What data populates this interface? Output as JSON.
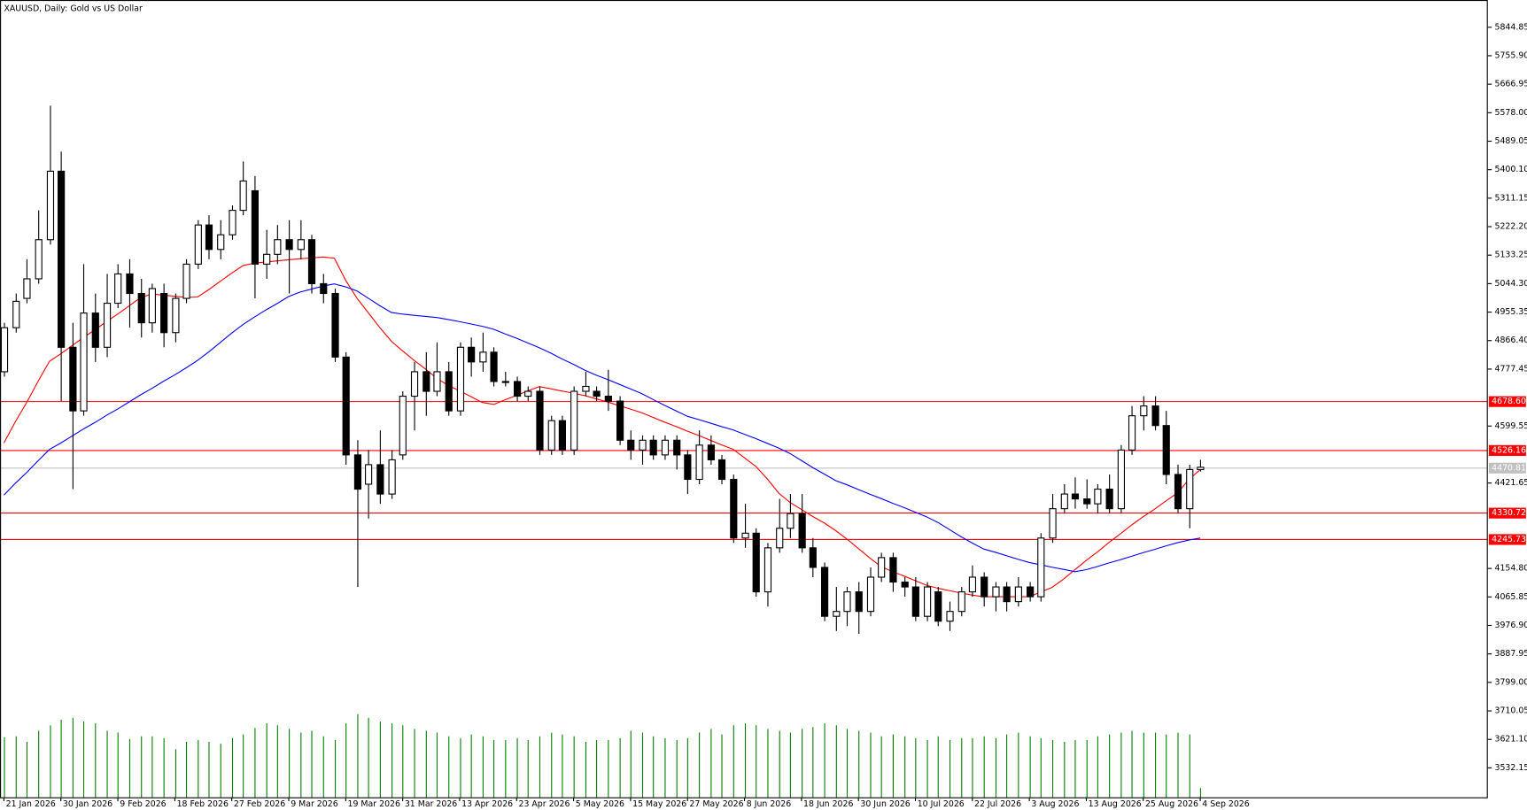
{
  "chart_data": {
    "type": "candlestick",
    "title": "XAUUSD, Daily:  Gold vs US Dollar",
    "ylim": [
      3440.2,
      5930.0
    ],
    "xlim": [
      -0.34,
      130.24
    ],
    "yticks": [
      {
        "value": 5844.85,
        "label": "5844.85"
      },
      {
        "value": 5755.9,
        "label": "5755.90"
      },
      {
        "value": 5666.95,
        "label": "5666.95"
      },
      {
        "value": 5578.0,
        "label": "5578.00"
      },
      {
        "value": 5489.05,
        "label": "5489.05"
      },
      {
        "value": 5400.1,
        "label": "5400.10"
      },
      {
        "value": 5311.15,
        "label": "5311.15"
      },
      {
        "value": 5222.2,
        "label": "5222.20"
      },
      {
        "value": 5133.25,
        "label": "5133.25"
      },
      {
        "value": 5044.3,
        "label": "5044.30"
      },
      {
        "value": 4955.35,
        "label": "4955.35"
      },
      {
        "value": 4866.4,
        "label": "4866.40"
      },
      {
        "value": 4777.45,
        "label": "4777.45"
      },
      {
        "value": 4599.55,
        "label": "4599.55"
      },
      {
        "value": 4421.65,
        "label": "4421.65"
      },
      {
        "value": 4154.8,
        "label": "4154.80"
      },
      {
        "value": 4065.85,
        "label": "4065.85"
      },
      {
        "value": 3976.9,
        "label": "3976.90"
      },
      {
        "value": 3887.95,
        "label": "3887.95"
      },
      {
        "value": 3799.0,
        "label": "3799.00"
      },
      {
        "value": 3710.05,
        "label": "3710.05"
      },
      {
        "value": 3621.1,
        "label": "3621.10"
      },
      {
        "value": 3532.15,
        "label": "3532.15"
      }
    ],
    "xticks": [
      {
        "value": 0,
        "label": "21 Jan 2026"
      },
      {
        "value": 5,
        "label": "30 Jan 2026"
      },
      {
        "value": 10,
        "label": "9 Feb 2026"
      },
      {
        "value": 15,
        "label": "18 Feb 2026"
      },
      {
        "value": 20,
        "label": "27 Feb 2026"
      },
      {
        "value": 25,
        "label": "9 Mar 2026"
      },
      {
        "value": 30,
        "label": "19 Mar 2026"
      },
      {
        "value": 35,
        "label": "31 Mar 2026"
      },
      {
        "value": 40,
        "label": "13 Apr 2026"
      },
      {
        "value": 45,
        "label": "23 Apr 2026"
      },
      {
        "value": 50,
        "label": "5 May 2026"
      },
      {
        "value": 55,
        "label": "15 May 2026"
      },
      {
        "value": 60,
        "label": "27 May 2026"
      },
      {
        "value": 65,
        "label": "8 Jun 2026"
      },
      {
        "value": 70,
        "label": "18 Jun 2026"
      },
      {
        "value": 75,
        "label": "30 Jun 2026"
      },
      {
        "value": 80,
        "label": "10 Jul 2026"
      },
      {
        "value": 85,
        "label": "22 Jul 2026"
      },
      {
        "value": 90,
        "label": "3 Aug 2026"
      },
      {
        "value": 95,
        "label": "13 Aug 2026"
      },
      {
        "value": 100,
        "label": "25 Aug 2026"
      },
      {
        "value": 105,
        "label": "4 Sep 2026"
      }
    ],
    "levels": [
      {
        "value": 4678.6,
        "label": "4678.60",
        "color": "#ff0000"
      },
      {
        "value": 4526.16,
        "label": "4526.16",
        "color": "#ff0000"
      },
      {
        "value": 4330.72,
        "label": "4330.72",
        "color": "#ff0000"
      },
      {
        "value": 4245.73,
        "label": "4245.73",
        "color": "#ff0000"
      }
    ],
    "bid": {
      "value": 4470.81,
      "label": "4470.81",
      "color": "#c0c0c0"
    },
    "up_color": "#ffffff",
    "down_color": "#000000",
    "volume_color": "#008000",
    "ma_fast_color": "#ff0000",
    "ma_slow_color": "#0000ff",
    "ohlc": [
      [
        4769.1,
        4921.9,
        4753.8,
        4906.6
      ],
      [
        4906.6,
        5013.5,
        4891.3,
        4989.1
      ],
      [
        4998.2,
        5120.4,
        4983.0,
        5059.3
      ],
      [
        5059.3,
        5273.2,
        5044.1,
        5181.5
      ],
      [
        5181.5,
        5600.1,
        5166.3,
        5395.4
      ],
      [
        5395.4,
        5456.5,
        4677.4,
        4845.5
      ],
      [
        4845.5,
        4921.9,
        4402.5,
        4646.9
      ],
      [
        4646.9,
        5105.2,
        4631.6,
        4952.4
      ],
      [
        4952.4,
        5013.5,
        4799.7,
        4845.5
      ],
      [
        4845.5,
        5074.6,
        4814.9,
        4983.0
      ],
      [
        4983.0,
        5105.2,
        4967.7,
        5074.6
      ],
      [
        5074.6,
        5120.4,
        4906.6,
        5013.5
      ],
      [
        5013.5,
        5059.3,
        4876.0,
        4921.9
      ],
      [
        4921.9,
        5044.1,
        4891.3,
        5028.8
      ],
      [
        5013.5,
        5044.1,
        4845.5,
        4891.3
      ],
      [
        4891.3,
        5013.5,
        4860.8,
        4998.2
      ],
      [
        4998.2,
        5120.4,
        4983.0,
        5105.2
      ],
      [
        5105.2,
        5242.6,
        5089.9,
        5227.4
      ],
      [
        5227.4,
        5257.9,
        5120.4,
        5151.0
      ],
      [
        5151.0,
        5242.6,
        5120.4,
        5196.8
      ],
      [
        5196.8,
        5288.5,
        5181.5,
        5273.2
      ],
      [
        5273.2,
        5425.9,
        5257.9,
        5364.8
      ],
      [
        5334.3,
        5380.1,
        4998.2,
        5105.2
      ],
      [
        5105.2,
        5212.1,
        5059.3,
        5135.7
      ],
      [
        5135.7,
        5227.4,
        5105.2,
        5181.5
      ],
      [
        5181.5,
        5242.6,
        5013.5,
        5151.0
      ],
      [
        5151.0,
        5242.6,
        5120.4,
        5181.5
      ],
      [
        5181.5,
        5196.8,
        5013.5,
        5044.1
      ],
      [
        5044.1,
        5074.6,
        4983.0,
        5013.5
      ],
      [
        5013.5,
        5028.8,
        4799.7,
        4814.9
      ],
      [
        4814.9,
        4830.2,
        4478.9,
        4509.4
      ],
      [
        4509.4,
        4555.3,
        4097.0,
        4402.5
      ],
      [
        4417.8,
        4524.7,
        4310.8,
        4478.9
      ],
      [
        4478.9,
        4585.8,
        4356.7,
        4387.2
      ],
      [
        4387.2,
        4524.7,
        4371.9,
        4494.1
      ],
      [
        4509.4,
        4708.0,
        4494.1,
        4692.7
      ],
      [
        4692.7,
        4799.7,
        4585.8,
        4769.1
      ],
      [
        4769.1,
        4830.2,
        4631.6,
        4708.0
      ],
      [
        4708.0,
        4860.8,
        4692.7,
        4769.1
      ],
      [
        4769.1,
        4799.7,
        4631.6,
        4646.9
      ],
      [
        4646.9,
        4860.8,
        4631.6,
        4845.5
      ],
      [
        4845.5,
        4876.0,
        4753.8,
        4799.7
      ],
      [
        4799.7,
        4891.3,
        4769.1,
        4830.2
      ],
      [
        4830.2,
        4845.5,
        4723.3,
        4738.6
      ],
      [
        4738.6,
        4769.1,
        4723.3,
        4738.6
      ],
      [
        4738.6,
        4753.8,
        4677.4,
        4692.7
      ],
      [
        4692.7,
        4723.3,
        4677.4,
        4708.0
      ],
      [
        4708.0,
        4723.3,
        4509.4,
        4524.7
      ],
      [
        4524.7,
        4631.6,
        4509.4,
        4616.4
      ],
      [
        4616.4,
        4631.6,
        4509.4,
        4524.7
      ],
      [
        4524.7,
        4723.3,
        4509.4,
        4708.0
      ],
      [
        4708.0,
        4769.1,
        4692.7,
        4723.3
      ],
      [
        4708.0,
        4723.3,
        4677.4,
        4692.7
      ],
      [
        4692.7,
        4775.2,
        4646.9,
        4677.4
      ],
      [
        4677.4,
        4692.7,
        4540.0,
        4555.3
      ],
      [
        4555.3,
        4585.8,
        4494.1,
        4524.7
      ],
      [
        4524.7,
        4570.5,
        4478.9,
        4555.3
      ],
      [
        4555.3,
        4570.5,
        4494.1,
        4509.4
      ],
      [
        4509.4,
        4570.5,
        4494.1,
        4555.3
      ],
      [
        4555.3,
        4570.5,
        4463.6,
        4509.4
      ],
      [
        4509.4,
        4524.7,
        4387.2,
        4433.0
      ],
      [
        4433.0,
        4585.8,
        4417.8,
        4540.0
      ],
      [
        4540.0,
        4570.5,
        4478.9,
        4494.1
      ],
      [
        4494.1,
        4509.4,
        4417.8,
        4433.0
      ],
      [
        4433.0,
        4448.3,
        4234.5,
        4249.8
      ],
      [
        4249.8,
        4356.7,
        4219.2,
        4265.0
      ],
      [
        4265.0,
        4280.3,
        4066.5,
        4081.7
      ],
      [
        4081.7,
        4234.5,
        4035.9,
        4219.2
      ],
      [
        4219.2,
        4371.9,
        4203.9,
        4280.3
      ],
      [
        4280.3,
        4387.2,
        4249.8,
        4326.1
      ],
      [
        4326.1,
        4387.2,
        4203.9,
        4219.2
      ],
      [
        4219.2,
        4249.8,
        4127.6,
        4158.1
      ],
      [
        4158.1,
        4173.4,
        3990.1,
        4005.4
      ],
      [
        4005.4,
        4097.0,
        3959.5,
        4020.6
      ],
      [
        4020.6,
        4097.0,
        3974.8,
        4081.7
      ],
      [
        4081.7,
        4112.3,
        3950.4,
        4020.6
      ],
      [
        4020.6,
        4158.1,
        4005.4,
        4127.6
      ],
      [
        4127.6,
        4203.9,
        4112.3,
        4188.6
      ],
      [
        4188.6,
        4203.9,
        4081.7,
        4112.3
      ],
      [
        4112.3,
        4127.6,
        4066.5,
        4097.0
      ],
      [
        4097.0,
        4127.6,
        3990.1,
        4005.4
      ],
      [
        4005.4,
        4112.3,
        3990.1,
        4097.0
      ],
      [
        4081.7,
        4097.0,
        3974.8,
        3990.1
      ],
      [
        3990.1,
        4051.2,
        3959.5,
        4020.6
      ],
      [
        4020.6,
        4097.0,
        4005.4,
        4081.7
      ],
      [
        4081.7,
        4164.2,
        4066.5,
        4127.6
      ],
      [
        4127.6,
        4142.8,
        4035.9,
        4066.5
      ],
      [
        4066.5,
        4112.3,
        4020.6,
        4097.0
      ],
      [
        4097.0,
        4112.3,
        4020.6,
        4051.2
      ],
      [
        4051.2,
        4127.6,
        4035.9,
        4097.0
      ],
      [
        4097.0,
        4112.3,
        4051.2,
        4066.5
      ],
      [
        4066.5,
        4265.0,
        4051.2,
        4249.8
      ],
      [
        4249.8,
        4387.2,
        4234.5,
        4341.4
      ],
      [
        4341.4,
        4417.8,
        4326.1,
        4387.2
      ],
      [
        4387.2,
        4439.2,
        4341.4,
        4371.9
      ],
      [
        4371.9,
        4433.0,
        4341.4,
        4356.7
      ],
      [
        4356.7,
        4417.8,
        4326.1,
        4402.5
      ],
      [
        4402.5,
        4448.3,
        4326.1,
        4341.4
      ],
      [
        4341.4,
        4540.0,
        4326.1,
        4524.7
      ],
      [
        4524.7,
        4662.2,
        4509.4,
        4631.6
      ],
      [
        4631.6,
        4692.7,
        4585.8,
        4662.2
      ],
      [
        4662.2,
        4692.7,
        4585.8,
        4601.1
      ],
      [
        4601.1,
        4646.9,
        4417.8,
        4448.3
      ],
      [
        4448.3,
        4478.9,
        4326.1,
        4341.4
      ],
      [
        4341.4,
        4478.9,
        4280.3,
        4463.6
      ],
      [
        4463.6,
        4494.1,
        4457.5,
        4470.81
      ]
    ],
    "volume": [
      65,
      66,
      60,
      72,
      78,
      84,
      86,
      82,
      80,
      72,
      70,
      63,
      66,
      66,
      64,
      52,
      60,
      62,
      60,
      58,
      64,
      68,
      75,
      80,
      78,
      74,
      70,
      72,
      66,
      62,
      80,
      90,
      86,
      82,
      80,
      78,
      74,
      72,
      70,
      66,
      64,
      68,
      66,
      62,
      62,
      64,
      62,
      66,
      70,
      68,
      66,
      60,
      62,
      62,
      64,
      72,
      70,
      66,
      64,
      62,
      64,
      70,
      74,
      68,
      78,
      80,
      78,
      74,
      72,
      70,
      74,
      76,
      80,
      78,
      74,
      72,
      70,
      66,
      68,
      66,
      64,
      62,
      66,
      62,
      64,
      64,
      66,
      64,
      68,
      70,
      66,
      64,
      62,
      60,
      62,
      62,
      66,
      68,
      70,
      72,
      70,
      70,
      68,
      70,
      68,
      10
    ],
    "ma_fast": [
      4546.7,
      4612.7,
      4673.2,
      4739.2,
      4801.8,
      4825.4,
      4851.0,
      4876.7,
      4900.2,
      4925.8,
      4949.4,
      4975.0,
      5000.7,
      5012.0,
      5008.3,
      5004.9,
      5001.3,
      5002.5,
      5026.0,
      5051.7,
      5077.4,
      5100.9,
      5108.2,
      5111.9,
      5115.2,
      5118.9,
      5121.8,
      5124.5,
      5127.3,
      5123.8,
      5054.1,
      4998.2,
      4952.4,
      4906.6,
      4864.6,
      4834.0,
      4804.6,
      4777.7,
      4748.4,
      4726.4,
      4709.6,
      4691.2,
      4672.9,
      4667.1,
      4681.8,
      4695.2,
      4709.9,
      4722.7,
      4716.0,
      4708.6,
      4701.9,
      4694.5,
      4684.5,
      4674.4,
      4663.4,
      4652.4,
      4640.8,
      4626.1,
      4611.5,
      4598.0,
      4583.4,
      4569.9,
      4555.2,
      4540.6,
      4527.1,
      4500.3,
      4473.4,
      4434.3,
      4390.2,
      4360.9,
      4338.9,
      4316.9,
      4296.8,
      4273.0,
      4246.1,
      4216.8,
      4187.4,
      4160.5,
      4144.7,
      4131.2,
      4116.6,
      4101.9,
      4092.7,
      4085.4,
      4078.1,
      4071.4,
      4066.5,
      4066.5,
      4066.5,
      4066.5,
      4066.5,
      4081.1,
      4095.8,
      4121.4,
      4150.8,
      4180.1,
      4207.0,
      4236.3,
      4263.2,
      4291.0,
      4316.6,
      4340.2,
      4365.8,
      4390.7,
      4432.3,
      4463.6
    ],
    "ma_slow": [
      4384.1,
      4420.8,
      4454.4,
      4491.1,
      4526.5,
      4546.7,
      4568.7,
      4590.7,
      4610.9,
      4632.9,
      4653.0,
      4675.0,
      4697.0,
      4717.2,
      4739.2,
      4759.4,
      4781.4,
      4804.6,
      4831.5,
      4860.8,
      4890.1,
      4917.0,
      4940.2,
      4962.2,
      4982.4,
      5004.3,
      5018.1,
      5027.3,
      5036.5,
      5043.3,
      5034.2,
      5021.2,
      4998.2,
      4975.3,
      4954.3,
      4949.0,
      4945.4,
      4942.0,
      4938.3,
      4932.2,
      4925.5,
      4918.2,
      4910.9,
      4901.7,
      4887.0,
      4873.6,
      4858.9,
      4844.0,
      4827.2,
      4808.8,
      4792.0,
      4773.7,
      4758.1,
      4744.7,
      4730.0,
      4715.3,
      4700.4,
      4682.0,
      4663.7,
      4646.9,
      4629.8,
      4619.7,
      4608.7,
      4597.7,
      4587.6,
      4573.6,
      4560.1,
      4545.5,
      4530.8,
      4513.7,
      4491.7,
      4469.7,
      4449.5,
      4429.3,
      4415.9,
      4401.2,
      4386.6,
      4373.1,
      4358.5,
      4345.0,
      4330.4,
      4315.7,
      4298.0,
      4276.0,
      4254.0,
      4233.9,
      4215.5,
      4205.5,
      4194.5,
      4183.5,
      4173.4,
      4166.1,
      4158.7,
      4152.0,
      4144.6,
      4151.0,
      4161.1,
      4172.1,
      4182.2,
      4193.2,
      4204.2,
      4214.3,
      4225.3,
      4235.2,
      4243.5,
      4249.8
    ]
  }
}
